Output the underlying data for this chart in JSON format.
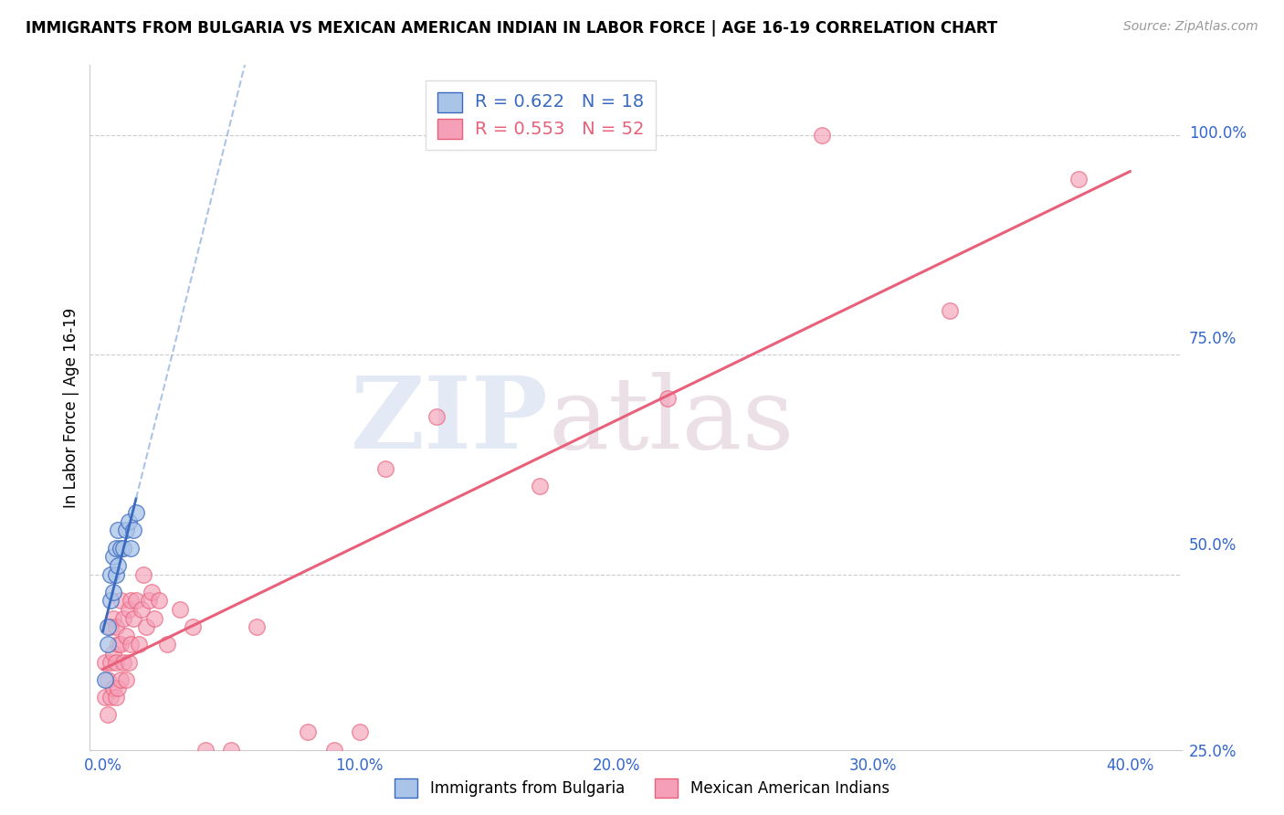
{
  "title": "IMMIGRANTS FROM BULGARIA VS MEXICAN AMERICAN INDIAN IN LABOR FORCE | AGE 16-19 CORRELATION CHART",
  "source": "Source: ZipAtlas.com",
  "ylabel": "In Labor Force | Age 16-19",
  "xlabel_ticks": [
    "0.0%",
    "10.0%",
    "20.0%",
    "30.0%",
    "40.0%"
  ],
  "xlabel_vals": [
    0.0,
    0.1,
    0.2,
    0.3,
    0.4
  ],
  "ylabel_ticks": [
    "25.0%",
    "50.0%",
    "75.0%",
    "100.0%"
  ],
  "ylabel_vals": [
    0.25,
    0.5,
    0.75,
    1.0
  ],
  "xlim": [
    -0.005,
    0.42
  ],
  "ylim": [
    0.3,
    1.08
  ],
  "R_bulgaria": 0.622,
  "N_bulgaria": 18,
  "R_mexican": 0.553,
  "N_mexican": 52,
  "bulgaria_color": "#aac4e8",
  "mexican_color": "#f5a0b8",
  "trendline_bulgaria_color": "#3a6abf",
  "trendline_mexican_color": "#e8607a",
  "legend_label_1": "Immigrants from Bulgaria",
  "legend_label_2": "Mexican American Indians",
  "bulgaria_x": [
    0.001,
    0.002,
    0.002,
    0.003,
    0.003,
    0.004,
    0.004,
    0.005,
    0.005,
    0.006,
    0.006,
    0.007,
    0.008,
    0.009,
    0.01,
    0.011,
    0.012,
    0.013
  ],
  "bulgaria_y": [
    0.38,
    0.42,
    0.44,
    0.47,
    0.5,
    0.48,
    0.52,
    0.5,
    0.53,
    0.51,
    0.55,
    0.53,
    0.53,
    0.55,
    0.56,
    0.53,
    0.55,
    0.57
  ],
  "mexican_x": [
    0.001,
    0.001,
    0.002,
    0.002,
    0.003,
    0.003,
    0.003,
    0.004,
    0.004,
    0.004,
    0.005,
    0.005,
    0.005,
    0.006,
    0.006,
    0.007,
    0.007,
    0.007,
    0.008,
    0.008,
    0.009,
    0.009,
    0.01,
    0.01,
    0.011,
    0.011,
    0.012,
    0.013,
    0.014,
    0.015,
    0.016,
    0.017,
    0.018,
    0.019,
    0.02,
    0.022,
    0.025,
    0.03,
    0.035,
    0.04,
    0.05,
    0.06,
    0.08,
    0.09,
    0.1,
    0.11,
    0.13,
    0.17,
    0.22,
    0.28,
    0.33,
    0.38
  ],
  "mexican_y": [
    0.36,
    0.4,
    0.34,
    0.38,
    0.36,
    0.4,
    0.44,
    0.37,
    0.41,
    0.45,
    0.36,
    0.4,
    0.44,
    0.37,
    0.42,
    0.38,
    0.42,
    0.47,
    0.4,
    0.45,
    0.38,
    0.43,
    0.4,
    0.46,
    0.42,
    0.47,
    0.45,
    0.47,
    0.42,
    0.46,
    0.5,
    0.44,
    0.47,
    0.48,
    0.45,
    0.47,
    0.42,
    0.46,
    0.44,
    0.3,
    0.3,
    0.44,
    0.32,
    0.3,
    0.32,
    0.62,
    0.68,
    0.6,
    0.7,
    1.0,
    0.8,
    0.95
  ]
}
